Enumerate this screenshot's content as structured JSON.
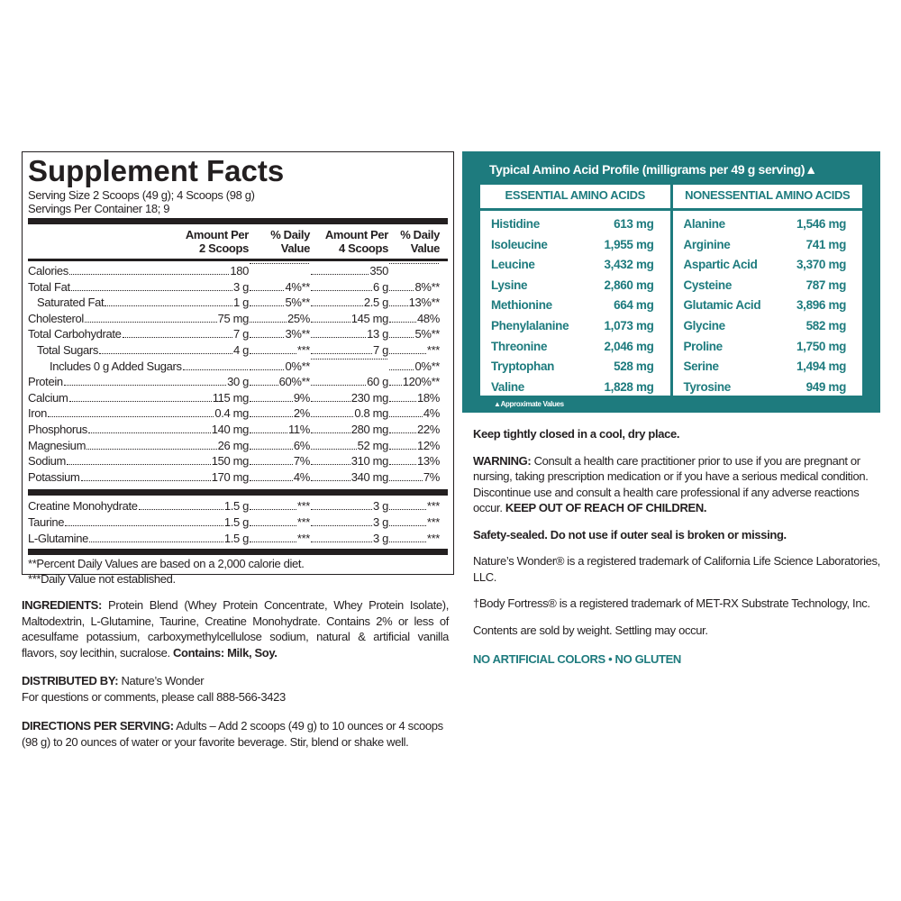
{
  "supplement_facts": {
    "title": "Supplement Facts",
    "serving_size": "Serving Size 2 Scoops (49 g); 4 Scoops (98 g)",
    "servings_per_container": "Servings Per Container 18; 9",
    "headers": [
      "Amount Per 2 Scoops",
      "% Daily Value",
      "Amount Per 4 Scoops",
      "% Daily Value"
    ],
    "rows": [
      [
        "Calories",
        "180",
        "",
        "350",
        ""
      ],
      [
        "Total Fat",
        "3 g",
        "4%**",
        "6 g",
        "8%**"
      ],
      [
        "Saturated Fat",
        "1 g",
        "5%**",
        "2.5 g",
        "13%**"
      ],
      [
        "Cholesterol",
        "75 mg",
        "25%",
        "145 mg",
        "48%"
      ],
      [
        "Total Carbohydrate",
        "7 g",
        "3%**",
        "13 g",
        "5%**"
      ],
      [
        "Total Sugars",
        "4 g",
        "***",
        "7 g",
        "***"
      ],
      [
        "Includes 0 g Added Sugars",
        "",
        "0%**",
        "",
        "0%**"
      ],
      [
        "Protein",
        "30 g",
        "60%**",
        "60 g",
        "120%**"
      ],
      [
        "Calcium",
        "115 mg",
        "9%",
        "230 mg",
        "18%"
      ],
      [
        "Iron",
        "0.4 mg",
        "2%",
        "0.8 mg",
        "4%"
      ],
      [
        "Phosphorus",
        "140 mg",
        "11%",
        "280 mg",
        "22%"
      ],
      [
        "Magnesium",
        "26 mg",
        "6%",
        "52 mg",
        "12%"
      ],
      [
        "Sodium",
        "150 mg",
        "7%",
        "310 mg",
        "13%"
      ],
      [
        "Potassium",
        "170 mg",
        "4%",
        "340 mg",
        "7%"
      ]
    ],
    "other_rows": [
      [
        "Creatine Monohydrate",
        "1.5 g",
        "***",
        "3 g",
        "***"
      ],
      [
        "Taurine",
        "1.5 g",
        "***",
        "3 g",
        "***"
      ],
      [
        "L-Glutamine",
        "1.5 g",
        "***",
        "3 g",
        "***"
      ]
    ],
    "footnotes": [
      "**Percent Daily Values are based on a 2,000 calorie diet.",
      "***Daily Value not established."
    ]
  },
  "ingredients": {
    "label": "INGREDIENTS:",
    "text": "Protein Blend (Whey Protein Concentrate, Whey Protein Isolate), Maltodextrin, L-Glutamine, Taurine, Creatine Monohydrate. Contains 2% or less of acesulfame potassium, carboxymethylcellulose sodium, natural & artificial vanilla flavors, soy lecithin, sucralose.",
    "contains": "Contains: Milk, Soy."
  },
  "distributed_by": {
    "label": "DISTRIBUTED BY:",
    "name": "Nature’s Wonder",
    "contact": "For questions or comments, please call 888-566-3423"
  },
  "directions": {
    "label": "DIRECTIONS PER SERVING:",
    "text": "Adults – Add 2 scoops (49 g) to 10 ounces or 4 scoops (98 g) to 20 ounces of water or your favorite beverage. Stir, blend or shake well."
  },
  "amino_acid_profile": {
    "title": "Typical Amino Acid Profile (milligrams per 49 g serving)▲",
    "essential": {
      "header": "ESSENTIAL AMINO ACIDS",
      "items": [
        [
          "Histidine",
          "613 mg"
        ],
        [
          "Isoleucine",
          "1,955 mg"
        ],
        [
          "Leucine",
          "3,432 mg"
        ],
        [
          "Lysine",
          "2,860 mg"
        ],
        [
          "Methionine",
          "664 mg"
        ],
        [
          "Phenylalanine",
          "1,073 mg"
        ],
        [
          "Threonine",
          "2,046 mg"
        ],
        [
          "Tryptophan",
          "528 mg"
        ],
        [
          "Valine",
          "1,828 mg"
        ]
      ]
    },
    "nonessential": {
      "header": "NONESSENTIAL AMINO ACIDS",
      "items": [
        [
          "Alanine",
          "1,546 mg"
        ],
        [
          "Arginine",
          "741 mg"
        ],
        [
          "Aspartic Acid",
          "3,370 mg"
        ],
        [
          "Cysteine",
          "787 mg"
        ],
        [
          "Glutamic Acid",
          "3,896 mg"
        ],
        [
          "Glycine",
          "582 mg"
        ],
        [
          "Proline",
          "1,750 mg"
        ],
        [
          "Serine",
          "1,494 mg"
        ],
        [
          "Tyrosine",
          "949 mg"
        ]
      ]
    },
    "footnote": "▲Approximate Values"
  },
  "storage": "Keep tightly closed in a cool, dry place.",
  "warning": {
    "label": "WARNING:",
    "text": "Consult a health care practitioner prior to use if you are pregnant or nursing, taking prescription medication or if you have a serious medical condition. Discontinue use and consult a health care professional if any adverse reactions occur.",
    "emphasis": "KEEP OUT OF REACH OF CHILDREN."
  },
  "safety": "Safety-sealed. Do not use if outer seal is broken or missing.",
  "trademarks": [
    "Nature’s Wonder® is a registered trademark of California Life Science Laboratories, LLC.",
    "†Body Fortress® is a registered trademark of MET-RX Substrate Technology, Inc."
  ],
  "contents_note": "Contents are sold by weight. Settling may occur.",
  "claims": "NO ARTIFICIAL COLORS • NO GLUTEN"
}
